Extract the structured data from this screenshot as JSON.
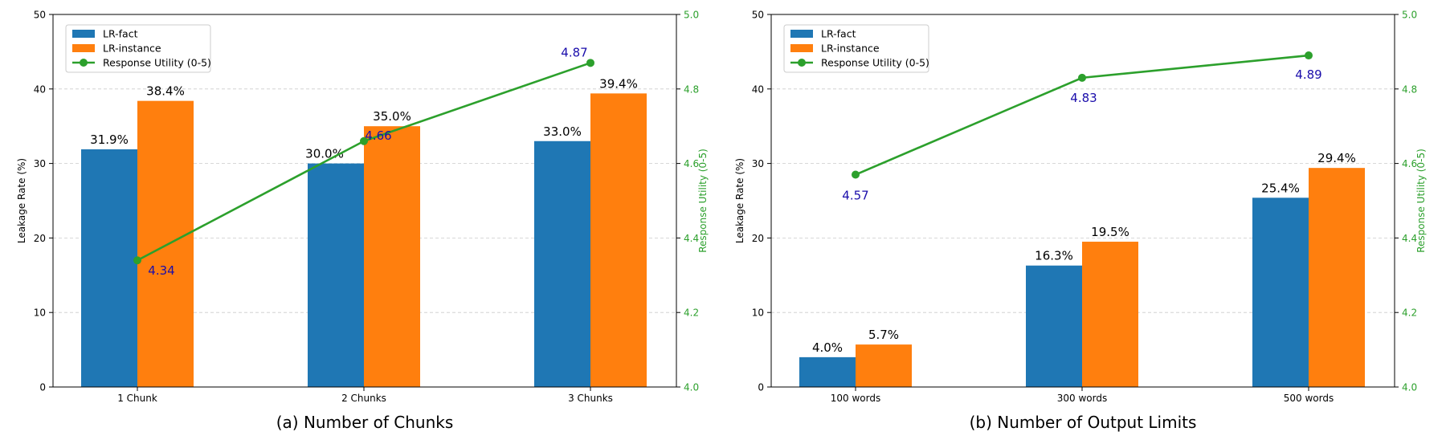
{
  "colors": {
    "lr_fact": "#1f77b4",
    "lr_instance": "#ff7f0e",
    "utility": "#2ca02c",
    "utility_label": "#1a0dab",
    "grid": "#cccccc"
  },
  "legend": {
    "lr_fact": "LR-fact",
    "lr_instance": "LR-instance",
    "utility": "Response Utility (0-5)"
  },
  "chart_data": [
    {
      "type": "bar",
      "caption": "(a) Number of Chunks",
      "categories": [
        "1 Chunk",
        "2 Chunks",
        "3 Chunks"
      ],
      "series": [
        {
          "name": "LR-fact",
          "values": [
            31.9,
            30.0,
            33.0
          ],
          "labels": [
            "31.9%",
            "30.0%",
            "33.0%"
          ]
        },
        {
          "name": "LR-instance",
          "values": [
            38.4,
            35.0,
            39.4
          ],
          "labels": [
            "38.4%",
            "35.0%",
            "39.4%"
          ]
        }
      ],
      "line": {
        "name": "Response Utility (0-5)",
        "values": [
          4.34,
          4.66,
          4.87
        ],
        "labels": [
          "4.34",
          "4.66",
          "4.87"
        ]
      },
      "ylabel": "Leakage Rate (%)",
      "ylabel_right": "Response Utility (0-5)",
      "ylim": [
        0,
        50
      ],
      "yticks": [
        "0",
        "10",
        "20",
        "30",
        "40",
        "50"
      ],
      "ylim_right": [
        4.0,
        5.0
      ],
      "yticks_right": [
        "4.0",
        "4.2",
        "4.4",
        "4.6",
        "4.8",
        "5.0"
      ],
      "legend_position": "upper-left"
    },
    {
      "type": "bar",
      "caption": "(b) Number of Output Limits",
      "categories": [
        "100 words",
        "300 words",
        "500 words"
      ],
      "series": [
        {
          "name": "LR-fact",
          "values": [
            4.0,
            16.3,
            25.4
          ],
          "labels": [
            "4.0%",
            "16.3%",
            "25.4%"
          ]
        },
        {
          "name": "LR-instance",
          "values": [
            5.7,
            19.5,
            29.4
          ],
          "labels": [
            "5.7%",
            "19.5%",
            "29.4%"
          ]
        }
      ],
      "line": {
        "name": "Response Utility (0-5)",
        "values": [
          4.57,
          4.83,
          4.89
        ],
        "labels": [
          "4.57",
          "4.83",
          "4.89"
        ]
      },
      "ylabel": "Leakage Rate (%)",
      "ylabel_right": "Response Utility (0-5)",
      "ylim": [
        0,
        50
      ],
      "yticks": [
        "0",
        "10",
        "20",
        "30",
        "40",
        "50"
      ],
      "ylim_right": [
        4.0,
        5.0
      ],
      "yticks_right": [
        "4.0",
        "4.2",
        "4.4",
        "4.6",
        "4.8",
        "5.0"
      ],
      "legend_position": "upper-left"
    }
  ]
}
